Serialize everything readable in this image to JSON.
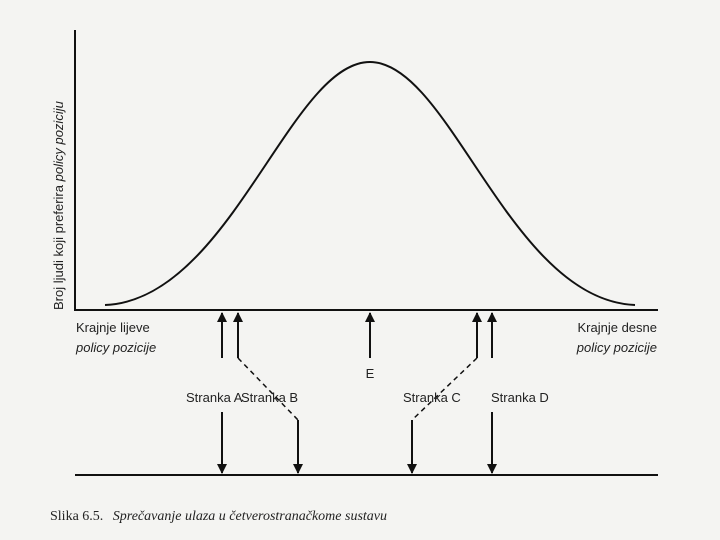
{
  "y_axis_label": {
    "text": "Broj ljudi koji preferira",
    "italic": "policy poziciju"
  },
  "left_end": {
    "text": "Krajnje lijeve",
    "italic": "policy pozicije"
  },
  "right_end": {
    "text": "Krajnje desne",
    "italic": "policy pozicije"
  },
  "median": "E",
  "parties": [
    "Stranka A",
    "Stranka B",
    "Stranka C",
    "Stranka D"
  ],
  "caption": {
    "number": "Slika 6.5.",
    "title": "Sprečavanje ulaza u četverostranačkome sustavu"
  }
}
